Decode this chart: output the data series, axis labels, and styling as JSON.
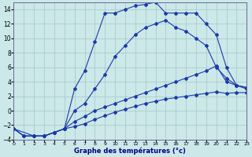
{
  "xlabel": "Graphe des températures (°c)",
  "background_color": "#cce8e8",
  "grid_color": "#aacccc",
  "line_color": "#1a3aaa",
  "ylim": [
    -4,
    15
  ],
  "xlim": [
    0,
    23
  ],
  "yticks": [
    -4,
    -2,
    0,
    2,
    4,
    6,
    8,
    10,
    12,
    14
  ],
  "xticks": [
    0,
    1,
    2,
    3,
    4,
    5,
    6,
    7,
    8,
    9,
    10,
    11,
    12,
    13,
    14,
    15,
    16,
    17,
    18,
    19,
    20,
    21,
    22,
    23
  ],
  "curve1_x": [
    0,
    1,
    2,
    3,
    4,
    5,
    6,
    7,
    8,
    9,
    10,
    11,
    12,
    13,
    14,
    15,
    16,
    17,
    18,
    19,
    20,
    21,
    22,
    23
  ],
  "curve1_y": [
    -2.5,
    -3.5,
    -3.5,
    -3.5,
    -3.0,
    -2.5,
    3.0,
    5.5,
    9.5,
    13.5,
    13.5,
    14.0,
    14.5,
    14.7,
    15.0,
    13.5,
    13.5,
    13.5,
    13.5,
    12.0,
    10.5,
    6.0,
    3.5,
    3.0
  ],
  "curve2_x": [
    0,
    2,
    3,
    4,
    5,
    6,
    7,
    8,
    9,
    10,
    11,
    12,
    13,
    14,
    15,
    16,
    17,
    18,
    19,
    20,
    21,
    22,
    23
  ],
  "curve2_y": [
    -2.5,
    -3.5,
    -3.5,
    -3.0,
    -2.5,
    0.0,
    1.0,
    3.0,
    5.0,
    7.5,
    9.0,
    10.5,
    11.5,
    12.0,
    12.5,
    11.5,
    11.0,
    10.0,
    9.0,
    6.0,
    4.5,
    3.5,
    3.2
  ],
  "curve3_x": [
    0,
    1,
    2,
    3,
    4,
    5,
    6,
    7,
    8,
    9,
    10,
    11,
    12,
    13,
    14,
    15,
    16,
    17,
    18,
    19,
    20,
    21,
    22,
    23
  ],
  "curve3_y": [
    -2.5,
    -3.5,
    -3.5,
    -3.5,
    -3.0,
    -2.5,
    -1.5,
    -0.8,
    0.0,
    0.5,
    1.0,
    1.5,
    2.0,
    2.5,
    3.0,
    3.5,
    4.0,
    4.5,
    5.0,
    5.5,
    6.2,
    4.0,
    3.5,
    3.2
  ],
  "curve4_x": [
    0,
    1,
    2,
    3,
    4,
    5,
    6,
    7,
    8,
    9,
    10,
    11,
    12,
    13,
    14,
    15,
    16,
    17,
    18,
    19,
    20,
    21,
    22,
    23
  ],
  "curve4_y": [
    -2.5,
    -3.5,
    -3.5,
    -3.5,
    -3.0,
    -2.5,
    -2.2,
    -1.8,
    -1.2,
    -0.7,
    -0.2,
    0.2,
    0.6,
    1.0,
    1.3,
    1.6,
    1.8,
    2.0,
    2.2,
    2.4,
    2.6,
    2.4,
    2.5,
    2.5
  ]
}
